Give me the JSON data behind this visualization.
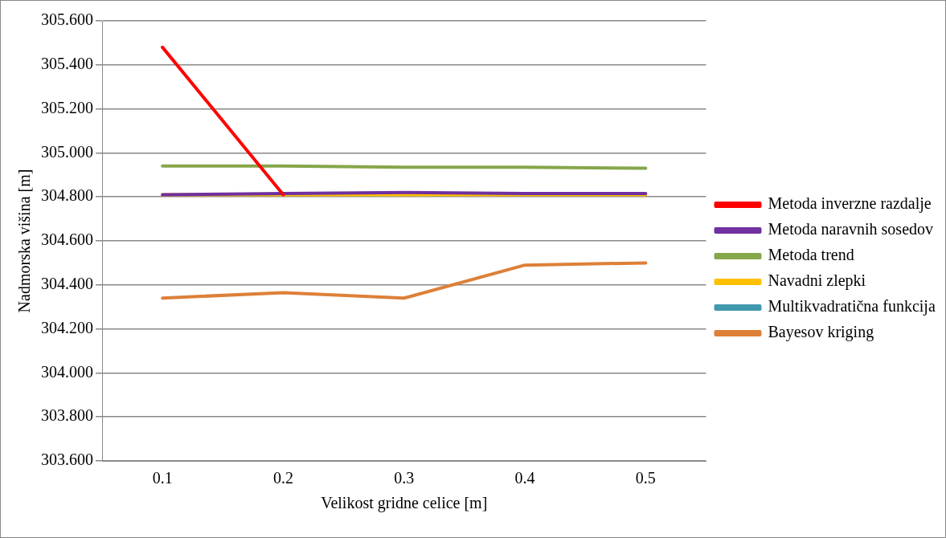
{
  "chart_data": {
    "type": "line",
    "xlabel": "Velikost gridne celice [m]",
    "ylabel": "Nadmorska višina [m]",
    "categories": [
      "0.1",
      "0.2",
      "0.3",
      "0.4",
      "0.5"
    ],
    "series": [
      {
        "name": "Metoda inverzne razdalje",
        "color": "#ff0000",
        "values": [
          305.48,
          304.81,
          null,
          null,
          null
        ]
      },
      {
        "name": "Metoda naravnih sosedov",
        "color": "#7030a0",
        "values": [
          304.81,
          304.815,
          304.82,
          304.815,
          304.815
        ]
      },
      {
        "name": "Metoda trend",
        "color": "#86a64a",
        "values": [
          304.94,
          304.94,
          304.935,
          304.935,
          304.93
        ]
      },
      {
        "name": "Navadni zlepki",
        "color": "#ffc000",
        "values": [
          304.81,
          304.81,
          304.81,
          304.81,
          304.81
        ]
      },
      {
        "name": "Multikvadratična funkcija",
        "color": "#4198af",
        "values": [
          null,
          null,
          null,
          null,
          null
        ]
      },
      {
        "name": "Bayesov kriging",
        "color": "#dd8038",
        "values": [
          304.34,
          304.365,
          304.34,
          304.49,
          304.5
        ]
      }
    ],
    "ylim": [
      303.6,
      305.6
    ],
    "yticks": [
      {
        "value": 303.6,
        "label": "303.600"
      },
      {
        "value": 303.8,
        "label": "303.800"
      },
      {
        "value": 304,
        "label": "304.000"
      },
      {
        "value": 304.2,
        "label": "304.200"
      },
      {
        "value": 304.4,
        "label": "304.400"
      },
      {
        "value": 304.6,
        "label": "304.600"
      },
      {
        "value": 304.8,
        "label": "304.800"
      },
      {
        "value": 305,
        "label": "305.000"
      },
      {
        "value": 305.2,
        "label": "305.200"
      },
      {
        "value": 305.4,
        "label": "305.400"
      },
      {
        "value": 305.6,
        "label": "305.600"
      }
    ],
    "grid": "y",
    "legend": "right",
    "marker": "none",
    "line_style": "solid"
  }
}
